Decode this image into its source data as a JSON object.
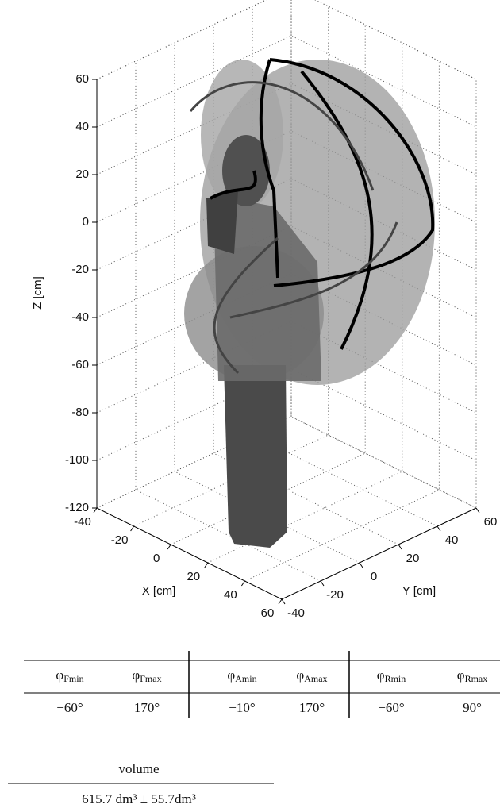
{
  "figure": {
    "zlabel": "Z [cm]",
    "xlabel": "X [cm]",
    "ylabel": "Y [cm]",
    "zlim": [
      -120,
      60
    ],
    "zticks": [
      60,
      40,
      20,
      0,
      -20,
      -40,
      -60,
      -80,
      -100,
      -120
    ],
    "xlim": [
      -40,
      60
    ],
    "xticks": [
      -40,
      -20,
      0,
      20,
      40,
      60
    ],
    "ylim": [
      -40,
      60
    ],
    "yticks": [
      -40,
      -20,
      0,
      20,
      40,
      60
    ]
  },
  "angles_table": {
    "header": [
      {
        "symbol": "φ",
        "subscript": "Fmin"
      },
      {
        "symbol": "φ",
        "subscript": "Fmax"
      },
      {
        "symbol": "φ",
        "subscript": "Amin"
      },
      {
        "symbol": "φ",
        "subscript": "Amax"
      },
      {
        "symbol": "φ",
        "subscript": "Rmin"
      },
      {
        "symbol": "φ",
        "subscript": "Rmax"
      }
    ],
    "rows": [
      [
        "−60°",
        "170°",
        "−10°",
        "170°",
        "−60°",
        "90°"
      ]
    ]
  },
  "volume_table": {
    "header": "volume",
    "value": "615.7 dm³ ± 55.7dm³"
  }
}
